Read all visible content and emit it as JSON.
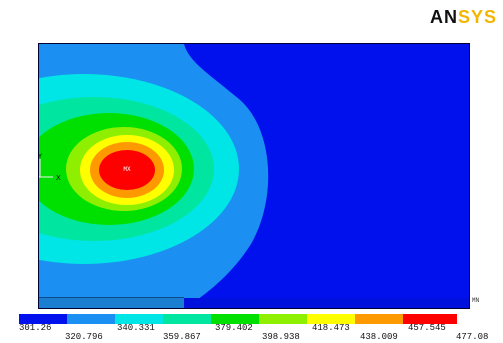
{
  "brand": {
    "logo_part1": "AN",
    "logo_part2": "SYS"
  },
  "plot": {
    "marker_label": "MX",
    "triad_x": "X",
    "triad_y": "Y",
    "strip_label": "MN"
  },
  "colors": {
    "blue": "#0011ee",
    "light_blue": "#1c8ff3",
    "cyan": "#00e5e5",
    "teal": "#00e5a0",
    "green": "#00e000",
    "yellow_green": "#8ef000",
    "yellow": "#ffff00",
    "orange": "#ff9900",
    "red": "#ff0000"
  },
  "legend": {
    "values": [
      "301.26",
      "320.796",
      "340.331",
      "359.867",
      "379.402",
      "398.938",
      "418.473",
      "438.009",
      "457.545",
      "477.08"
    ],
    "colors": [
      "#0011ee",
      "#1c8ff3",
      "#00e5e5",
      "#00e5a0",
      "#00e000",
      "#8ef000",
      "#ffff00",
      "#ff9900",
      "#ff0000"
    ]
  }
}
